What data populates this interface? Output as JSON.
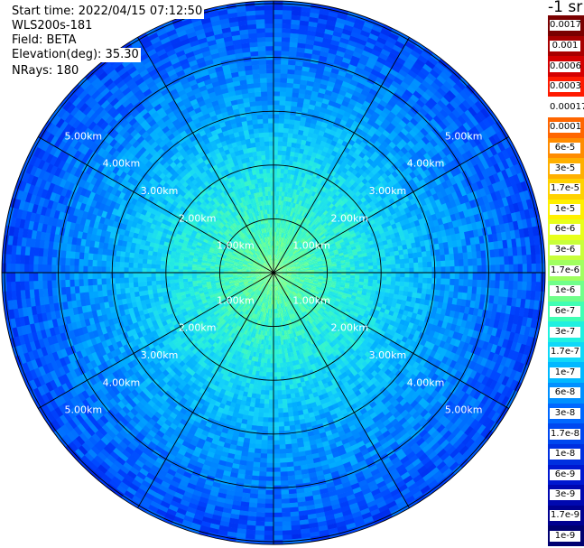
{
  "header": {
    "start_time": "Start time: 2022/04/15 07:12:50",
    "instrument": "WLS200s-181",
    "field": "Field: BETA",
    "elevation": "Elevation(deg): 35.30",
    "nrays": "NRays: 180"
  },
  "colorbar": {
    "unit": "-1 sr",
    "labels": [
      "0.0017",
      "0.001",
      "0.0006",
      "0.0003",
      "0.00017",
      "0.0001",
      "6e-5",
      "3e-5",
      "1.7e-5",
      "1e-5",
      "6e-6",
      "3e-6",
      "1.7e-6",
      "1e-6",
      "6e-7",
      "3e-7",
      "1.7e-7",
      "1e-7",
      "6e-8",
      "3e-8",
      "1.7e-8",
      "1e-8",
      "6e-9",
      "3e-9",
      "1.7e-9",
      "1e-9"
    ],
    "colors": [
      "#7a0000",
      "#a80000",
      "#d40000",
      "#ff1a00",
      "#ffffff",
      "#ff6600",
      "#ff8c00",
      "#ffb000",
      "#ffd200",
      "#fff000",
      "#e8ff1a",
      "#c8ff3a",
      "#a0ff60",
      "#70ff8a",
      "#40ffb4",
      "#20f0e0",
      "#10d8f8",
      "#00b8ff",
      "#0090ff",
      "#0068ff",
      "#0048f0",
      "#0030e0",
      "#0018d0",
      "#0008b0",
      "#000090",
      "#000070"
    ]
  },
  "chart_data": {
    "type": "heatmap",
    "projection": "polar PPI",
    "range_rings_km": [
      1,
      2,
      3,
      4,
      5
    ],
    "ring_labels": [
      "1.00km",
      "2.00km",
      "3.00km",
      "4.00km",
      "5.00km"
    ],
    "spokes_deg": [
      0,
      30,
      60,
      90,
      120,
      150,
      180,
      210,
      240,
      270,
      300,
      330
    ],
    "max_range_km": 5.0,
    "nrays": 180,
    "field": "BETA",
    "value_scale": "log",
    "profile_log10_by_range": [
      [
        0.0,
        -6.4
      ],
      [
        1.0,
        -6.7
      ],
      [
        2.0,
        -7.0
      ],
      [
        3.0,
        -7.4
      ],
      [
        4.0,
        -7.7
      ],
      [
        5.0,
        -8.0
      ]
    ]
  }
}
